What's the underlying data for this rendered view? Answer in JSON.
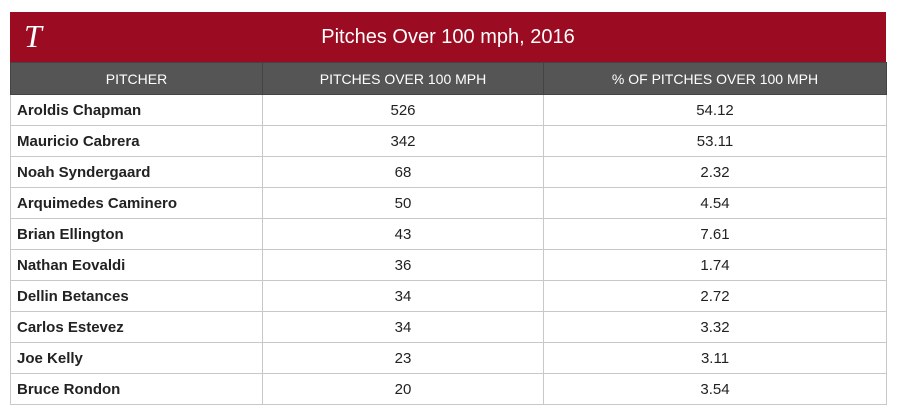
{
  "header": {
    "logo": "T",
    "title": "Pitches Over 100 mph, 2016"
  },
  "table": {
    "columns": [
      "PITCHER",
      "PITCHES OVER 100 MPH",
      "% OF PITCHES OVER 100 MPH"
    ],
    "rows": [
      [
        "Aroldis Chapman",
        526,
        54.12
      ],
      [
        "Mauricio Cabrera",
        342,
        53.11
      ],
      [
        "Noah Syndergaard",
        68,
        2.32
      ],
      [
        "Arquimedes Caminero",
        50,
        4.54
      ],
      [
        "Brian Ellington",
        43,
        7.61
      ],
      [
        "Nathan Eovaldi",
        36,
        1.74
      ],
      [
        "Dellin Betances",
        34,
        2.72
      ],
      [
        "Carlos Estevez",
        34,
        3.32
      ],
      [
        "Joe Kelly",
        23,
        3.11
      ],
      [
        "Bruce Rondon",
        20,
        3.54
      ]
    ]
  }
}
